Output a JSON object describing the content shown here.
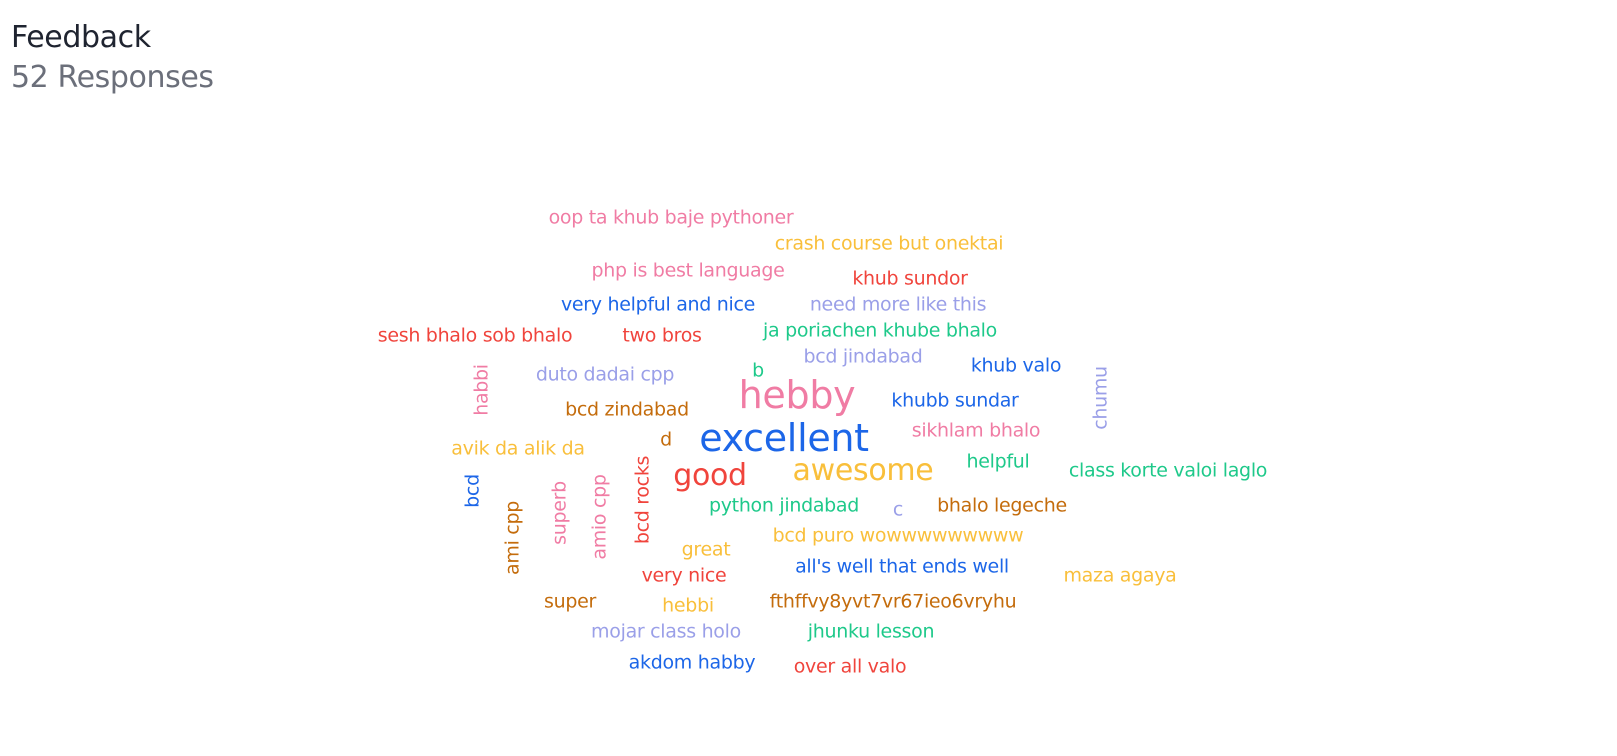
{
  "header": {
    "title": "Feedback",
    "subtitle": "52 Responses"
  },
  "colors": {
    "pink": "#f07ca4",
    "yellow": "#f9bf3b",
    "red": "#f0443c",
    "blue": "#1c66e8",
    "lavender": "#9a9fe8",
    "green": "#1ec98a",
    "orange": "#c46c0c"
  },
  "words": [
    {
      "text": "oop ta khub baje pythoner",
      "color": "pink",
      "weight": 1
    },
    {
      "text": "crash course but onektai",
      "color": "yellow",
      "weight": 1
    },
    {
      "text": "php is best language",
      "color": "pink",
      "weight": 1
    },
    {
      "text": "khub sundor",
      "color": "red",
      "weight": 1
    },
    {
      "text": "very helpful and nice",
      "color": "blue",
      "weight": 1
    },
    {
      "text": "need more like this",
      "color": "lavender",
      "weight": 1
    },
    {
      "text": "sesh bhalo sob bhalo",
      "color": "red",
      "weight": 1
    },
    {
      "text": "two bros",
      "color": "red",
      "weight": 1
    },
    {
      "text": "ja poriachen khube bhalo",
      "color": "green",
      "weight": 1
    },
    {
      "text": "bcd jindabad",
      "color": "lavender",
      "weight": 1
    },
    {
      "text": "khub valo",
      "color": "blue",
      "weight": 1
    },
    {
      "text": "b",
      "color": "green",
      "weight": 1
    },
    {
      "text": "habbi",
      "color": "pink",
      "weight": 1
    },
    {
      "text": "duto dadai cpp",
      "color": "lavender",
      "weight": 1
    },
    {
      "text": "hebby",
      "color": "pink",
      "weight": 3
    },
    {
      "text": "chumu",
      "color": "lavender",
      "weight": 1
    },
    {
      "text": "khubb sundar",
      "color": "blue",
      "weight": 1
    },
    {
      "text": "bcd zindabad",
      "color": "orange",
      "weight": 1
    },
    {
      "text": "excellent",
      "color": "blue",
      "weight": 3
    },
    {
      "text": "sikhlam bhalo",
      "color": "pink",
      "weight": 1
    },
    {
      "text": "d",
      "color": "orange",
      "weight": 1
    },
    {
      "text": "avik da alik da",
      "color": "yellow",
      "weight": 1
    },
    {
      "text": "helpful",
      "color": "green",
      "weight": 1
    },
    {
      "text": "good",
      "color": "red",
      "weight": 2
    },
    {
      "text": "awesome",
      "color": "yellow",
      "weight": 2
    },
    {
      "text": "class korte valoi laglo",
      "color": "green",
      "weight": 1
    },
    {
      "text": "bcd",
      "color": "blue",
      "weight": 1
    },
    {
      "text": "bcd rocks",
      "color": "red",
      "weight": 1
    },
    {
      "text": "superb",
      "color": "pink",
      "weight": 1
    },
    {
      "text": "amio cpp",
      "color": "pink",
      "weight": 1
    },
    {
      "text": "python jindabad",
      "color": "green",
      "weight": 1
    },
    {
      "text": "c",
      "color": "lavender",
      "weight": 1
    },
    {
      "text": "bhalo legeche",
      "color": "orange",
      "weight": 1
    },
    {
      "text": "ami cpp",
      "color": "orange",
      "weight": 1
    },
    {
      "text": "bcd puro wowwwwwwwww",
      "color": "yellow",
      "weight": 1
    },
    {
      "text": "great",
      "color": "yellow",
      "weight": 1
    },
    {
      "text": "all's well that ends well",
      "color": "blue",
      "weight": 1
    },
    {
      "text": "very nice",
      "color": "red",
      "weight": 1
    },
    {
      "text": "maza agaya",
      "color": "yellow",
      "weight": 1
    },
    {
      "text": "super",
      "color": "orange",
      "weight": 1
    },
    {
      "text": "hebbi",
      "color": "yellow",
      "weight": 1
    },
    {
      "text": "fthffvy8yvt7vr67ieo6vryhu",
      "color": "orange",
      "weight": 1
    },
    {
      "text": "mojar class holo",
      "color": "lavender",
      "weight": 1
    },
    {
      "text": "jhunku lesson",
      "color": "green",
      "weight": 1
    },
    {
      "text": "akdom habby",
      "color": "blue",
      "weight": 1
    },
    {
      "text": "over all valo",
      "color": "red",
      "weight": 1
    }
  ]
}
